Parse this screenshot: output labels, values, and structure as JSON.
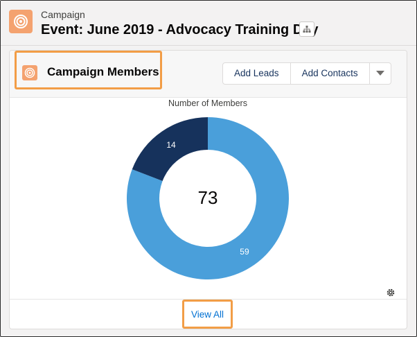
{
  "header": {
    "eyebrow": "Campaign",
    "title": "Event: June 2019 - Advocacy Training Day",
    "icon": "campaign-target-icon"
  },
  "card": {
    "title": "Campaign Members",
    "icon": "campaign-target-icon",
    "buttons": {
      "add_leads": "Add Leads",
      "add_contacts": "Add Contacts"
    },
    "footer_link": "View All"
  },
  "colors": {
    "accent_orange": "#f29d46",
    "icon_orange": "#f4a26f",
    "donut_light": "#4a9fda",
    "donut_dark": "#16325c",
    "link": "#0070d2"
  },
  "chart_data": {
    "type": "pie",
    "title": "Number of Members",
    "total": "73",
    "slices": [
      {
        "value": 59,
        "color": "#4a9fda"
      },
      {
        "value": 14,
        "color": "#16325c"
      }
    ]
  }
}
